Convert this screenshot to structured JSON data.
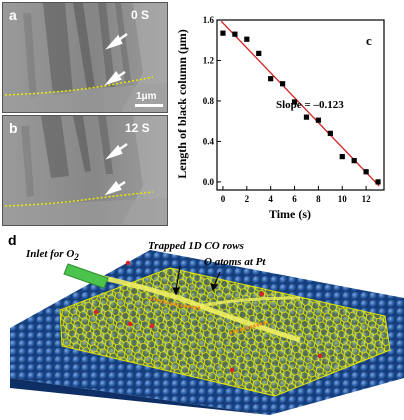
{
  "panel_a": {
    "label": "a",
    "time_label": "0 S",
    "scale_label": "1μm"
  },
  "panel_b": {
    "label": "b",
    "time_label": "12 S"
  },
  "panel_c": {
    "label": "c",
    "slope_label": "Slope = –0.123"
  },
  "panel_d": {
    "label": "d",
    "annotations": {
      "inlet": "Inlet for O",
      "inlet_sub": "2",
      "trapped": "Trapped 1D CO rows",
      "oxygen": "O atoms at Pt"
    }
  },
  "colors": {
    "fit_line": "#d62020",
    "points": "#000000",
    "edge_dotted": "#e8e800",
    "sphere_blue": "#2a5fa8",
    "graphene_yellow": "#e6e600",
    "oxygen_red": "#e02020",
    "inlet_green": "#4cc34c"
  },
  "chart_data": {
    "type": "scatter",
    "xlabel": "Time (s)",
    "ylabel": "Length of black column (μm)",
    "xlim": [
      -0.5,
      13.5
    ],
    "ylim": [
      -0.08,
      1.6
    ],
    "xticks": [
      0,
      2,
      4,
      6,
      8,
      10,
      12
    ],
    "yticks": [
      0.0,
      0.4,
      0.8,
      1.2,
      1.6
    ],
    "ytick_labels": [
      "0.0",
      "0.4",
      "0.8",
      "1.2",
      "1.6"
    ],
    "x": [
      0,
      1,
      2,
      3,
      4,
      5,
      6,
      7,
      8,
      9,
      10,
      11,
      12,
      13
    ],
    "y": [
      1.47,
      1.46,
      1.41,
      1.27,
      1.02,
      0.97,
      0.79,
      0.64,
      0.61,
      0.48,
      0.25,
      0.21,
      0.1,
      0.0
    ],
    "fit_line": {
      "slope": -0.123,
      "intercept": 1.57,
      "x_range": [
        -0.15,
        13.1
      ]
    }
  }
}
